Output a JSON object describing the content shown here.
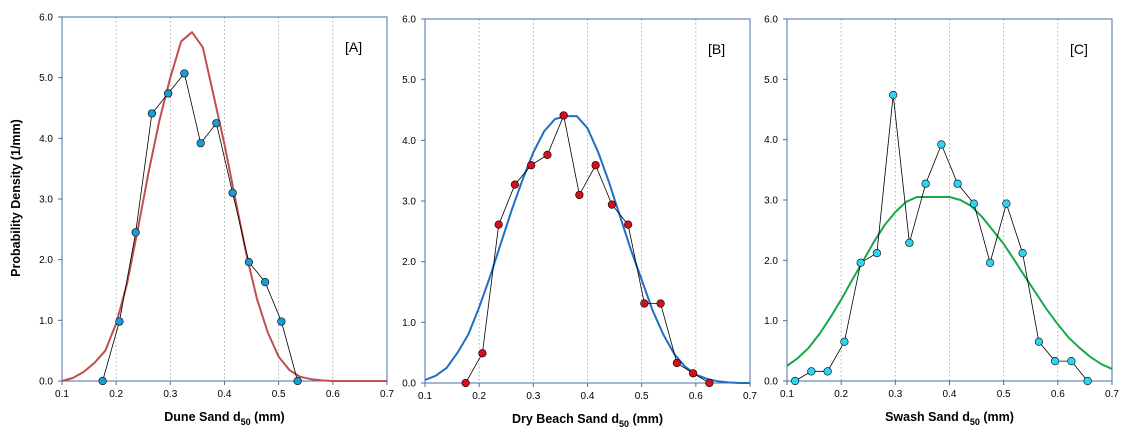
{
  "y_axis_label": "Probability Density  (1/mm)",
  "chart_data": [
    {
      "type": "line",
      "panel_label": "[A]",
      "xlabel_main": "Dune Sand d",
      "xlabel_sub": "50",
      "xlabel_unit": " (mm)",
      "xlim": [
        0.1,
        0.7
      ],
      "ylim": [
        0,
        6
      ],
      "xticks": [
        "0.1",
        "0.2",
        "0.3",
        "0.4",
        "0.5",
        "0.6",
        "0.7"
      ],
      "yticks": [
        "0.0",
        "1.0",
        "2.0",
        "3.0",
        "4.0",
        "5.0",
        "6.0"
      ],
      "grid": "vertical dotted",
      "colors": {
        "points": "#1b9ad6",
        "curve": "#c0504d",
        "connector": "#000000"
      },
      "series": [
        {
          "kind": "observed",
          "x": [
            0.175,
            0.206,
            0.236,
            0.266,
            0.296,
            0.326,
            0.356,
            0.385,
            0.415,
            0.445,
            0.475,
            0.505,
            0.535
          ],
          "y": [
            0.0,
            0.98,
            2.45,
            4.41,
            4.74,
            5.07,
            3.92,
            4.25,
            3.1,
            1.96,
            1.63,
            0.98,
            0.0
          ]
        },
        {
          "kind": "fitted",
          "x": [
            0.1,
            0.12,
            0.14,
            0.16,
            0.18,
            0.2,
            0.22,
            0.24,
            0.26,
            0.28,
            0.3,
            0.32,
            0.34,
            0.36,
            0.38,
            0.4,
            0.42,
            0.44,
            0.46,
            0.48,
            0.5,
            0.52,
            0.54,
            0.56,
            0.58,
            0.6,
            0.62,
            0.64,
            0.66,
            0.68,
            0.7
          ],
          "y": [
            0.0,
            0.05,
            0.15,
            0.3,
            0.5,
            0.95,
            1.6,
            2.5,
            3.45,
            4.3,
            5.0,
            5.6,
            5.75,
            5.5,
            4.7,
            3.9,
            3.0,
            2.1,
            1.35,
            0.8,
            0.4,
            0.18,
            0.07,
            0.03,
            0.01,
            0.0,
            0.0,
            0.0,
            0.0,
            0.0,
            0.0
          ]
        }
      ]
    },
    {
      "type": "line",
      "panel_label": "[B]",
      "xlabel_main": "Dry Beach Sand d",
      "xlabel_sub": "50",
      "xlabel_unit": " (mm)",
      "xlim": [
        0.1,
        0.7
      ],
      "ylim": [
        0,
        6
      ],
      "xticks": [
        "0.1",
        "0.2",
        "0.3",
        "0.4",
        "0.5",
        "0.6",
        "0.7"
      ],
      "yticks": [
        "0.0",
        "1.0",
        "2.0",
        "3.0",
        "4.0",
        "5.0",
        "6.0"
      ],
      "grid": "vertical dotted",
      "colors": {
        "points": "#d4111b",
        "curve": "#1f6fc4",
        "connector": "#000000"
      },
      "series": [
        {
          "kind": "observed",
          "x": [
            0.175,
            0.206,
            0.236,
            0.266,
            0.296,
            0.326,
            0.356,
            0.385,
            0.415,
            0.445,
            0.475,
            0.505,
            0.535,
            0.565,
            0.595,
            0.625
          ],
          "y": [
            0.0,
            0.49,
            2.61,
            3.27,
            3.59,
            3.76,
            4.41,
            3.1,
            3.59,
            2.94,
            2.61,
            1.31,
            1.31,
            0.33,
            0.16,
            0.0
          ]
        },
        {
          "kind": "fitted",
          "x": [
            0.1,
            0.12,
            0.14,
            0.16,
            0.18,
            0.2,
            0.22,
            0.24,
            0.26,
            0.28,
            0.3,
            0.32,
            0.34,
            0.36,
            0.37,
            0.38,
            0.4,
            0.42,
            0.44,
            0.46,
            0.48,
            0.5,
            0.52,
            0.54,
            0.56,
            0.58,
            0.6,
            0.62,
            0.64,
            0.66,
            0.68,
            0.7
          ],
          "y": [
            0.05,
            0.12,
            0.25,
            0.5,
            0.8,
            1.25,
            1.75,
            2.3,
            2.85,
            3.35,
            3.8,
            4.15,
            4.35,
            4.4,
            4.4,
            4.4,
            4.2,
            3.8,
            3.3,
            2.75,
            2.2,
            1.7,
            1.2,
            0.8,
            0.48,
            0.27,
            0.14,
            0.07,
            0.03,
            0.01,
            0.0,
            0.0
          ]
        }
      ]
    },
    {
      "type": "line",
      "panel_label": "[C]",
      "xlabel_main": "Swash Sand d",
      "xlabel_sub": "50",
      "xlabel_unit": " (mm)",
      "xlim": [
        0.1,
        0.7
      ],
      "ylim": [
        0,
        6
      ],
      "xticks": [
        "0.1",
        "0.2",
        "0.3",
        "0.4",
        "0.5",
        "0.6",
        "0.7"
      ],
      "yticks": [
        "0.0",
        "1.0",
        "2.0",
        "3.0",
        "4.0",
        "5.0",
        "6.0"
      ],
      "grid": "vertical dotted",
      "colors": {
        "points": "#2ed3f0",
        "curve": "#1aa64a",
        "connector": "#000000"
      },
      "series": [
        {
          "kind": "observed",
          "x": [
            0.115,
            0.145,
            0.175,
            0.206,
            0.236,
            0.266,
            0.296,
            0.326,
            0.356,
            0.385,
            0.415,
            0.445,
            0.475,
            0.505,
            0.535,
            0.565,
            0.595,
            0.625,
            0.655
          ],
          "y": [
            0.0,
            0.16,
            0.16,
            0.65,
            1.96,
            2.12,
            4.74,
            2.29,
            3.27,
            3.92,
            3.27,
            2.94,
            1.96,
            2.94,
            2.12,
            0.65,
            0.33,
            0.33,
            0.0
          ]
        },
        {
          "kind": "fitted",
          "x": [
            0.1,
            0.12,
            0.14,
            0.16,
            0.18,
            0.2,
            0.22,
            0.24,
            0.26,
            0.28,
            0.3,
            0.32,
            0.34,
            0.36,
            0.38,
            0.4,
            0.42,
            0.44,
            0.46,
            0.48,
            0.5,
            0.52,
            0.54,
            0.56,
            0.58,
            0.6,
            0.62,
            0.64,
            0.66,
            0.68,
            0.7
          ],
          "y": [
            0.25,
            0.38,
            0.55,
            0.78,
            1.05,
            1.35,
            1.67,
            1.98,
            2.3,
            2.58,
            2.8,
            2.97,
            3.05,
            3.05,
            3.05,
            3.05,
            3.0,
            2.9,
            2.72,
            2.5,
            2.27,
            2.0,
            1.72,
            1.45,
            1.18,
            0.94,
            0.72,
            0.55,
            0.4,
            0.28,
            0.2
          ]
        }
      ]
    }
  ]
}
